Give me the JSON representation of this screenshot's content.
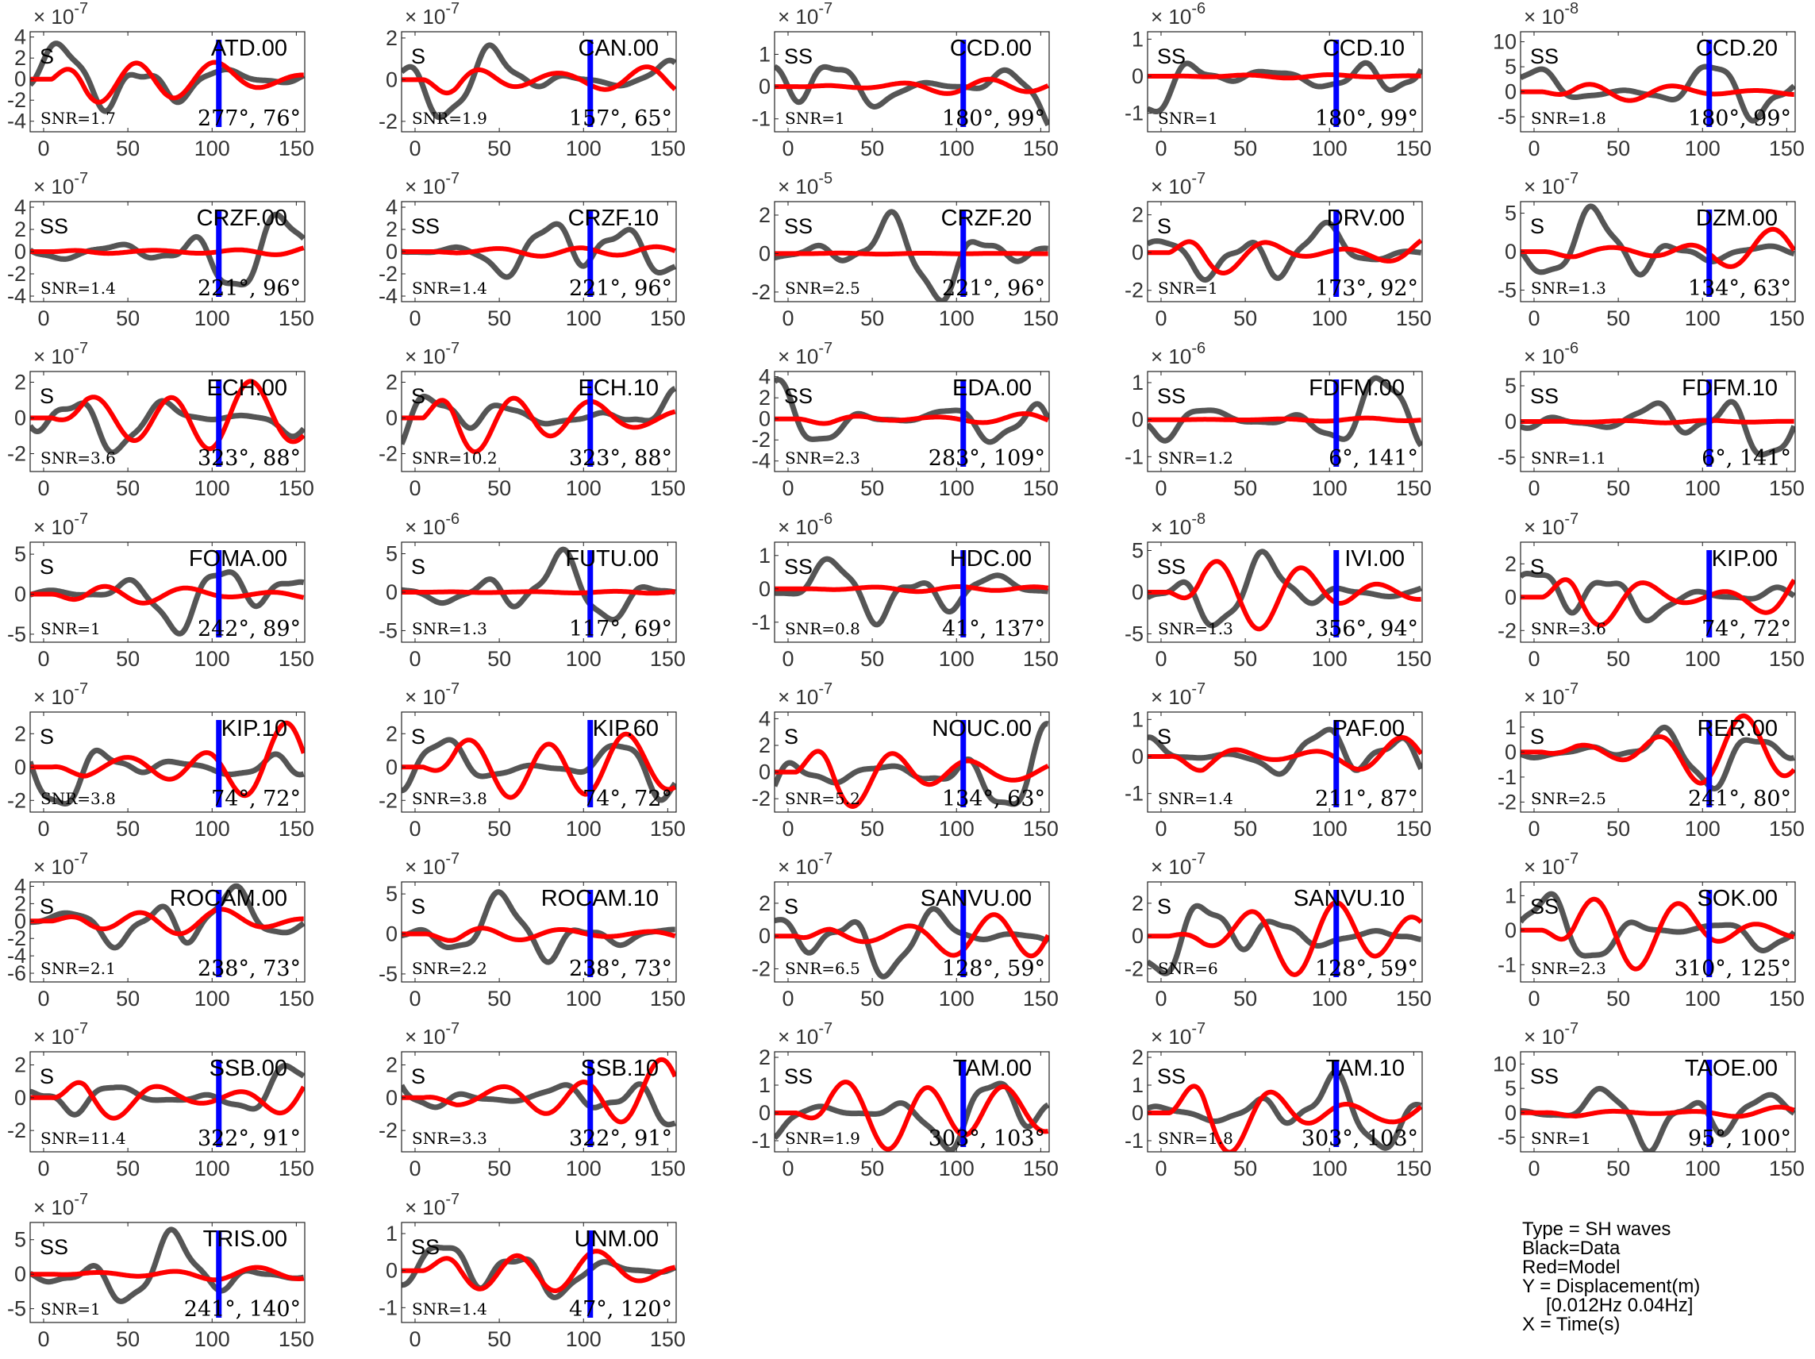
{
  "figure": {
    "legend": {
      "lines": [
        "Type = SH waves",
        "Black=Data",
        "Red=Model",
        "Y = Displacement(m)",
        "[0.012Hz 0.04Hz]",
        "X = Time(s)"
      ]
    }
  },
  "chart_data": {
    "type": "line",
    "colors": {
      "data": "#555555",
      "model": "#ff0000",
      "marker": "#0000ff"
    },
    "xlim": [
      -8,
      155
    ],
    "xticks": [
      0,
      50,
      100,
      150
    ],
    "marker_time": 104,
    "panels": [
      {
        "station": "ATD.00",
        "phase": "S",
        "snr": "SNR=1.7",
        "azimuth": "277°, 76°",
        "exponent_label": "× 10",
        "exponent": "-7",
        "ylim": [
          -5,
          4.5
        ],
        "yticks": [
          4,
          2,
          0,
          -2,
          -4
        ],
        "data_amp": 4.2,
        "model_amp": 3.2
      },
      {
        "station": "CAN.00",
        "phase": "S",
        "snr": "SNR=1.9",
        "azimuth": "157°, 65°",
        "exponent_label": "× 10",
        "exponent": "-7",
        "ylim": [
          -2.5,
          2.3
        ],
        "yticks": [
          2,
          0,
          -2
        ],
        "data_amp": 2.0,
        "model_amp": 1.7
      },
      {
        "station": "CCD.00",
        "phase": "SS",
        "snr": "SNR=1",
        "azimuth": "180°, 99°",
        "exponent_label": "× 10",
        "exponent": "-7",
        "ylim": [
          -1.4,
          1.7
        ],
        "yticks": [
          1,
          0,
          -1
        ],
        "data_amp": 1.4,
        "model_amp": 0.3
      },
      {
        "station": "CCD.10",
        "phase": "SS",
        "snr": "SNR=1",
        "azimuth": "180°, 99°",
        "exponent_label": "× 10",
        "exponent": "-6",
        "ylim": [
          -1.5,
          1.2
        ],
        "yticks": [
          1,
          0,
          -1
        ],
        "data_amp": 1.2,
        "model_amp": 0.05
      },
      {
        "station": "CCD.20",
        "phase": "SS",
        "snr": "SNR=1.8",
        "azimuth": "180°, 99°",
        "exponent_label": "× 10",
        "exponent": "-8",
        "ylim": [
          -8,
          12
        ],
        "yticks": [
          10,
          5,
          0,
          -5
        ],
        "data_amp": 8.0,
        "model_amp": 2.5
      },
      {
        "station": "CRZF.00",
        "phase": "SS",
        "snr": "SNR=1.4",
        "azimuth": "221°, 96°",
        "exponent_label": "× 10",
        "exponent": "-7",
        "ylim": [
          -4.5,
          4.5
        ],
        "yticks": [
          4,
          2,
          0,
          -2,
          -4
        ],
        "data_amp": 4.0,
        "model_amp": 0.6
      },
      {
        "station": "CRZF.10",
        "phase": "SS",
        "snr": "SNR=1.4",
        "azimuth": "221°, 96°",
        "exponent_label": "× 10",
        "exponent": "-7",
        "ylim": [
          -4.5,
          4.5
        ],
        "yticks": [
          4,
          2,
          0,
          -2,
          -4
        ],
        "data_amp": 4.0,
        "model_amp": 0.6
      },
      {
        "station": "CRZF.20",
        "phase": "SS",
        "snr": "SNR=2.5",
        "azimuth": "221°, 96°",
        "exponent_label": "× 10",
        "exponent": "-5",
        "ylim": [
          -2.5,
          2.7
        ],
        "yticks": [
          2,
          0,
          -2
        ],
        "data_amp": 2.5,
        "model_amp": 0.03
      },
      {
        "station": "DRV.00",
        "phase": "S",
        "snr": "SNR=1",
        "azimuth": "173°, 92°",
        "exponent_label": "× 10",
        "exponent": "-7",
        "ylim": [
          -2.6,
          2.7
        ],
        "yticks": [
          2,
          0,
          -2
        ],
        "data_amp": 2.2,
        "model_amp": 1.5
      },
      {
        "station": "DZM.00",
        "phase": "S",
        "snr": "SNR=1.3",
        "azimuth": "134°, 63°",
        "exponent_label": "× 10",
        "exponent": "-7",
        "ylim": [
          -6.5,
          6.5
        ],
        "yticks": [
          5,
          0,
          -5
        ],
        "data_amp": 5.5,
        "model_amp": 3.0
      },
      {
        "station": "ECH.00",
        "phase": "S",
        "snr": "SNR=3.6",
        "azimuth": "323°, 88°",
        "exponent_label": "× 10",
        "exponent": "-7",
        "ylim": [
          -3,
          2.6
        ],
        "yticks": [
          2,
          0,
          -2
        ],
        "data_amp": 2.2,
        "model_amp": 2.4
      },
      {
        "station": "ECH.10",
        "phase": "S",
        "snr": "SNR=10.2",
        "azimuth": "323°, 88°",
        "exponent_label": "× 10",
        "exponent": "-7",
        "ylim": [
          -3,
          2.6
        ],
        "yticks": [
          2,
          0,
          -2
        ],
        "data_amp": 2.2,
        "model_amp": 2.4
      },
      {
        "station": "EDA.00",
        "phase": "SS",
        "snr": "SNR=2.3",
        "azimuth": "283°, 109°",
        "exponent_label": "× 10",
        "exponent": "-7",
        "ylim": [
          -5,
          4.5
        ],
        "yticks": [
          4,
          2,
          0,
          -2,
          -4
        ],
        "data_amp": 4.0,
        "model_amp": 1.0
      },
      {
        "station": "FDFM.00",
        "phase": "SS",
        "snr": "SNR=1.2",
        "azimuth": "6°, 141°",
        "exponent_label": "× 10",
        "exponent": "-6",
        "ylim": [
          -1.4,
          1.3
        ],
        "yticks": [
          1,
          0,
          -1
        ],
        "data_amp": 1.2,
        "model_amp": 0.05
      },
      {
        "station": "FDFM.10",
        "phase": "SS",
        "snr": "SNR=1.1",
        "azimuth": "6°, 141°",
        "exponent_label": "× 10",
        "exponent": "-6",
        "ylim": [
          -7,
          7
        ],
        "yticks": [
          5,
          0,
          -5
        ],
        "data_amp": 6.0,
        "model_amp": 0.2
      },
      {
        "station": "FOMA.00",
        "phase": "S",
        "snr": "SNR=1",
        "azimuth": "242°, 89°",
        "exponent_label": "× 10",
        "exponent": "-7",
        "ylim": [
          -6,
          6.5
        ],
        "yticks": [
          5,
          0,
          -5
        ],
        "data_amp": 5.2,
        "model_amp": 2.0
      },
      {
        "station": "FUTU.00",
        "phase": "S",
        "snr": "SNR=1.3",
        "azimuth": "117°, 69°",
        "exponent_label": "× 10",
        "exponent": "-6",
        "ylim": [
          -6.5,
          6.5
        ],
        "yticks": [
          5,
          0,
          -5
        ],
        "data_amp": 5.5,
        "model_amp": 0.3
      },
      {
        "station": "HDC.00",
        "phase": "SS",
        "snr": "SNR=0.8",
        "azimuth": "41°, 137°",
        "exponent_label": "× 10",
        "exponent": "-6",
        "ylim": [
          -1.6,
          1.4
        ],
        "yticks": [
          1,
          0,
          -1
        ],
        "data_amp": 1.3,
        "model_amp": 0.1
      },
      {
        "station": "IVI.00",
        "phase": "SS",
        "snr": "SNR=1.3",
        "azimuth": "356°, 94°",
        "exponent_label": "× 10",
        "exponent": "-8",
        "ylim": [
          -6,
          6
        ],
        "yticks": [
          5,
          0,
          -5
        ],
        "data_amp": 5.0,
        "model_amp": 4.5
      },
      {
        "station": "KIP.00",
        "phase": "S",
        "snr": "SNR=3.6",
        "azimuth": "74°, 72°",
        "exponent_label": "× 10",
        "exponent": "-7",
        "ylim": [
          -2.7,
          3.3
        ],
        "yticks": [
          2,
          0,
          -2
        ],
        "data_amp": 2.5,
        "model_amp": 2.7
      },
      {
        "station": "KIP.10",
        "phase": "S",
        "snr": "SNR=3.8",
        "azimuth": "74°, 72°",
        "exponent_label": "× 10",
        "exponent": "-7",
        "ylim": [
          -2.7,
          3.3
        ],
        "yticks": [
          2,
          0,
          -2
        ],
        "data_amp": 2.5,
        "model_amp": 2.7
      },
      {
        "station": "KIP.60",
        "phase": "S",
        "snr": "SNR=3.8",
        "azimuth": "74°, 72°",
        "exponent_label": "× 10",
        "exponent": "-7",
        "ylim": [
          -2.7,
          3.3
        ],
        "yticks": [
          2,
          0,
          -2
        ],
        "data_amp": 2.5,
        "model_amp": 2.7
      },
      {
        "station": "NOUC.00",
        "phase": "S",
        "snr": "SNR=5.2",
        "azimuth": "134°, 63°",
        "exponent_label": "× 10",
        "exponent": "-7",
        "ylim": [
          -3,
          4.5
        ],
        "yticks": [
          4,
          2,
          0,
          -2
        ],
        "data_amp": 3.8,
        "model_amp": 3.0
      },
      {
        "station": "PAF.00",
        "phase": "S",
        "snr": "SNR=1.4",
        "azimuth": "211°, 87°",
        "exponent_label": "× 10",
        "exponent": "-7",
        "ylim": [
          -1.5,
          1.2
        ],
        "yticks": [
          1,
          0,
          -1
        ],
        "data_amp": 1.1,
        "model_amp": 0.8
      },
      {
        "station": "RER.00",
        "phase": "S",
        "snr": "SNR=2.5",
        "azimuth": "241°, 80°",
        "exponent_label": "× 10",
        "exponent": "-7",
        "ylim": [
          -2.4,
          1.6
        ],
        "yticks": [
          1,
          0,
          -1,
          -2
        ],
        "data_amp": 1.4,
        "model_amp": 1.5
      },
      {
        "station": "ROCAM.00",
        "phase": "S",
        "snr": "SNR=2.1",
        "azimuth": "238°, 73°",
        "exponent_label": "× 10",
        "exponent": "-7",
        "ylim": [
          -7,
          4.5
        ],
        "yticks": [
          4,
          2,
          0,
          -2,
          -4,
          -6
        ],
        "data_amp": 5.0,
        "model_amp": 1.8
      },
      {
        "station": "ROCAM.10",
        "phase": "S",
        "snr": "SNR=2.2",
        "azimuth": "238°, 73°",
        "exponent_label": "× 10",
        "exponent": "-7",
        "ylim": [
          -6,
          6.5
        ],
        "yticks": [
          5,
          0,
          -5
        ],
        "data_amp": 5.0,
        "model_amp": 1.8
      },
      {
        "station": "SANVU.00",
        "phase": "S",
        "snr": "SNR=6.5",
        "azimuth": "128°, 59°",
        "exponent_label": "× 10",
        "exponent": "-7",
        "ylim": [
          -2.8,
          3.3
        ],
        "yticks": [
          2,
          0,
          -2
        ],
        "data_amp": 2.8,
        "model_amp": 2.6
      },
      {
        "station": "SANVU.10",
        "phase": "S",
        "snr": "SNR=6",
        "azimuth": "128°, 59°",
        "exponent_label": "× 10",
        "exponent": "-7",
        "ylim": [
          -2.8,
          3.3
        ],
        "yticks": [
          2,
          0,
          -2
        ],
        "data_amp": 2.8,
        "model_amp": 2.6
      },
      {
        "station": "SOK.00",
        "phase": "SS",
        "snr": "SNR=2.3",
        "azimuth": "310°, 125°",
        "exponent_label": "× 10",
        "exponent": "-7",
        "ylim": [
          -1.5,
          1.4
        ],
        "yticks": [
          1,
          0,
          -1
        ],
        "data_amp": 1.2,
        "model_amp": 1.2
      },
      {
        "station": "SSB.00",
        "phase": "S",
        "snr": "SNR=11.4",
        "azimuth": "322°, 91°",
        "exponent_label": "× 10",
        "exponent": "-7",
        "ylim": [
          -3.3,
          2.8
        ],
        "yticks": [
          2,
          0,
          -2
        ],
        "data_amp": 2.2,
        "model_amp": 2.5
      },
      {
        "station": "SSB.10",
        "phase": "S",
        "snr": "SNR=3.3",
        "azimuth": "322°, 91°",
        "exponent_label": "× 10",
        "exponent": "-7",
        "ylim": [
          -3.3,
          2.8
        ],
        "yticks": [
          2,
          0,
          -2
        ],
        "data_amp": 2.2,
        "model_amp": 2.5
      },
      {
        "station": "TAM.00",
        "phase": "SS",
        "snr": "SNR=1.9",
        "azimuth": "303°, 103°",
        "exponent_label": "× 10",
        "exponent": "-7",
        "ylim": [
          -1.4,
          2.2
        ],
        "yticks": [
          2,
          1,
          0,
          -1
        ],
        "data_amp": 1.6,
        "model_amp": 1.6
      },
      {
        "station": "TAM.10",
        "phase": "SS",
        "snr": "SNR=1.8",
        "azimuth": "303°, 103°",
        "exponent_label": "× 10",
        "exponent": "-7",
        "ylim": [
          -1.4,
          2.2
        ],
        "yticks": [
          2,
          1,
          0,
          -1
        ],
        "data_amp": 1.6,
        "model_amp": 1.6
      },
      {
        "station": "TAOE.00",
        "phase": "SS",
        "snr": "SNR=1",
        "azimuth": "95°, 100°",
        "exponent_label": "× 10",
        "exponent": "-7",
        "ylim": [
          -8,
          12.5
        ],
        "yticks": [
          10,
          5,
          0,
          -5
        ],
        "data_amp": 9.0,
        "model_amp": 1.5
      },
      {
        "station": "TRIS.00",
        "phase": "SS",
        "snr": "SNR=1",
        "azimuth": "241°, 140°",
        "exponent_label": "× 10",
        "exponent": "-7",
        "ylim": [
          -7,
          7.5
        ],
        "yticks": [
          5,
          0,
          -5
        ],
        "data_amp": 6.0,
        "model_amp": 1.0
      },
      {
        "station": "UNM.00",
        "phase": "SS",
        "snr": "SNR=1.4",
        "azimuth": "47°, 120°",
        "exponent_label": "× 10",
        "exponent": "-7",
        "ylim": [
          -1.4,
          1.3
        ],
        "yticks": [
          1,
          0,
          -1
        ],
        "data_amp": 1.1,
        "model_amp": 0.8
      }
    ]
  }
}
